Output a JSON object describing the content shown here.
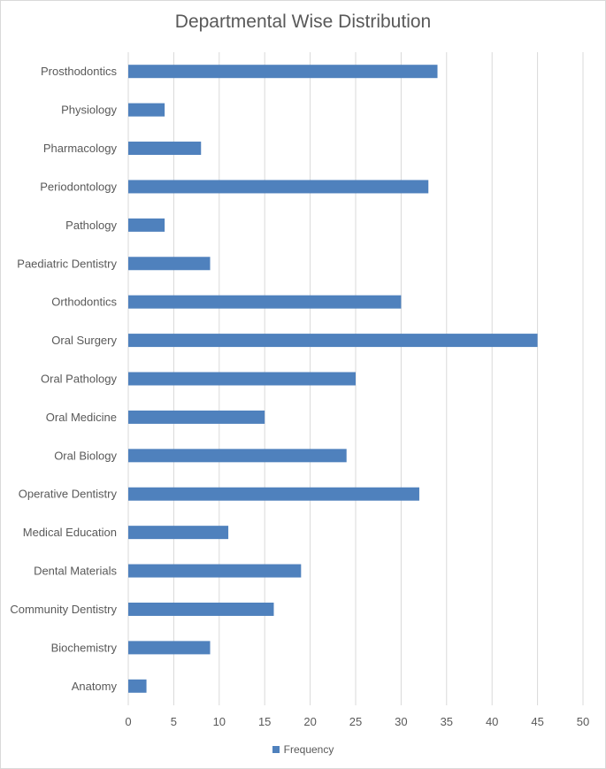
{
  "chart_data": {
    "type": "bar",
    "orientation": "horizontal",
    "title": "Departmental Wise Distribution",
    "categories": [
      "Prosthodontics",
      "Physiology",
      "Pharmacology",
      "Periodontology",
      "Pathology",
      "Paediatric Dentistry",
      "Orthodontics",
      "Oral Surgery",
      "Oral Pathology",
      "Oral Medicine",
      "Oral Biology",
      "Operative Dentistry",
      "Medical Education",
      "Dental Materials",
      "Community Dentistry",
      "Biochemistry",
      "Anatomy"
    ],
    "series": [
      {
        "name": "Frequency",
        "color": "#4f81bd",
        "values": [
          34,
          4,
          8,
          33,
          4,
          9,
          30,
          45,
          25,
          15,
          24,
          32,
          11,
          19,
          16,
          9,
          2
        ]
      }
    ],
    "xlim": [
      0,
      50
    ],
    "xticks": [
      0,
      5,
      10,
      15,
      20,
      25,
      30,
      35,
      40,
      45,
      50
    ],
    "grid": "vertical",
    "legend_position": "bottom"
  }
}
